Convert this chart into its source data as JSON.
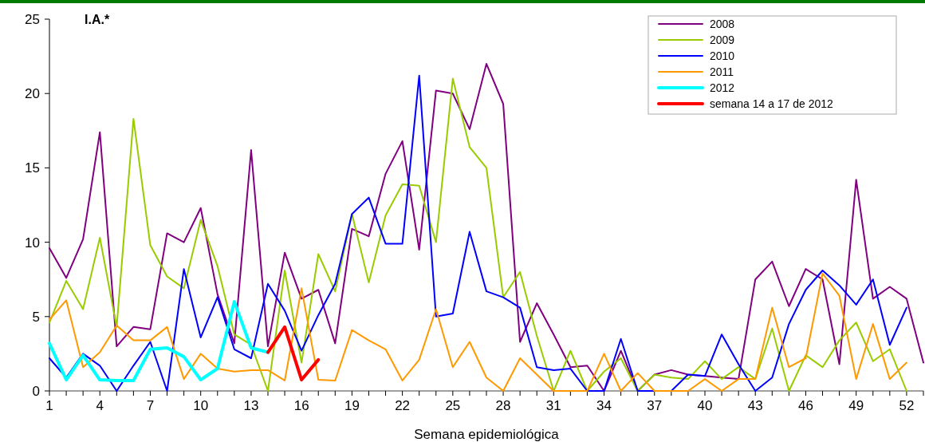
{
  "chart_data": {
    "type": "line",
    "title": "I.A.*",
    "xlabel": "Semana epidemiológica",
    "x": [
      1,
      2,
      3,
      4,
      5,
      6,
      7,
      8,
      9,
      10,
      11,
      12,
      13,
      14,
      15,
      16,
      17,
      18,
      19,
      20,
      21,
      22,
      23,
      24,
      25,
      26,
      27,
      28,
      29,
      30,
      31,
      32,
      33,
      34,
      35,
      36,
      37,
      38,
      39,
      40,
      41,
      42,
      43,
      44,
      45,
      46,
      47,
      48,
      49,
      50,
      51,
      52,
      53
    ],
    "xlim": [
      1,
      53
    ],
    "xticks": [
      1,
      4,
      7,
      10,
      13,
      16,
      19,
      22,
      25,
      28,
      31,
      34,
      37,
      40,
      43,
      46,
      49,
      52
    ],
    "ylim": [
      0,
      25
    ],
    "yticks": [
      0,
      5,
      10,
      15,
      20,
      25
    ],
    "legend": "top right",
    "series": [
      {
        "name": "2008",
        "color": "#800080",
        "values": [
          9.6,
          7.6,
          10.2,
          17.4,
          3.0,
          4.3,
          4.15,
          10.6,
          10.0,
          12.3,
          6.5,
          3.2,
          16.2,
          3.0,
          9.3,
          6.2,
          6.8,
          3.2,
          10.9,
          10.4,
          14.6,
          16.8,
          9.5,
          20.2,
          20.0,
          17.6,
          22.0,
          19.3,
          3.3,
          5.9,
          3.8,
          1.6,
          1.7,
          0,
          2.7,
          0,
          1.1,
          1.4,
          1.1,
          1.0,
          0.9,
          0.8,
          7.5,
          8.7,
          5.7,
          8.2,
          7.5,
          1.8,
          14.2,
          6.2,
          7.0,
          6.2,
          1.9
        ]
      },
      {
        "name": "2009",
        "color": "#99cc00",
        "values": [
          4.6,
          7.4,
          5.5,
          10.3,
          4.3,
          18.3,
          9.8,
          7.7,
          6.9,
          11.5,
          8.4,
          3.8,
          3.1,
          0,
          8.1,
          1.9,
          9.2,
          6.7,
          11.9,
          7.3,
          11.8,
          13.9,
          13.8,
          10.0,
          21.0,
          16.4,
          15.0,
          6.3,
          8.0,
          3.7,
          0,
          2.7,
          0,
          1.3,
          2.2,
          0,
          1.1,
          0.9,
          0.8,
          2.0,
          0.8,
          1.6,
          0.8,
          4.2,
          0,
          2.4,
          1.6,
          3.4,
          4.6,
          2.0,
          2.8,
          0,
          null
        ]
      },
      {
        "name": "2010",
        "color": "#0000ff",
        "values": [
          2.2,
          0.9,
          2.5,
          1.7,
          0,
          1.7,
          3.3,
          0,
          8.2,
          3.6,
          6.3,
          2.8,
          2.2,
          7.2,
          5.4,
          2.7,
          5.1,
          7.2,
          11.9,
          13.0,
          9.9,
          9.9,
          21.2,
          5.0,
          5.2,
          10.7,
          6.7,
          6.3,
          5.6,
          1.6,
          1.4,
          1.5,
          0,
          0,
          3.5,
          0,
          0,
          0,
          1.1,
          1.0,
          3.8,
          1.8,
          0,
          0.9,
          4.5,
          6.8,
          8.1,
          7.1,
          5.8,
          7.5,
          3.1,
          5.6,
          null
        ]
      },
      {
        "name": "2011",
        "color": "#ff9900",
        "values": [
          4.8,
          6.1,
          1.6,
          2.6,
          4.4,
          3.4,
          3.4,
          4.3,
          0.8,
          2.5,
          1.5,
          1.3,
          1.4,
          1.4,
          0.7,
          6.9,
          0.75,
          0.7,
          4.1,
          3.4,
          2.8,
          0.7,
          2.1,
          5.5,
          1.6,
          3.3,
          0.9,
          0,
          2.2,
          1.1,
          0,
          0,
          0,
          2.5,
          0,
          1.2,
          0,
          0,
          0,
          0.8,
          0,
          0.8,
          0.8,
          5.6,
          1.6,
          2.2,
          7.9,
          6.4,
          0.8,
          4.5,
          0.8,
          1.9,
          null
        ]
      },
      {
        "name": "2012",
        "color": "#00ffff",
        "x": [
          1,
          2,
          3,
          4,
          5,
          6,
          7,
          8,
          9,
          10,
          11,
          12,
          13,
          14
        ],
        "values": [
          3.2,
          0.75,
          2.4,
          0.75,
          0.7,
          0.7,
          2.8,
          2.9,
          2.3,
          0.75,
          1.5,
          6.0,
          2.9,
          2.6
        ]
      },
      {
        "name": "semana 14 a 17 de 2012",
        "color": "#ff0000",
        "x": [
          14,
          15,
          16,
          17
        ],
        "values": [
          2.6,
          4.3,
          0.75,
          2.1
        ]
      }
    ]
  }
}
